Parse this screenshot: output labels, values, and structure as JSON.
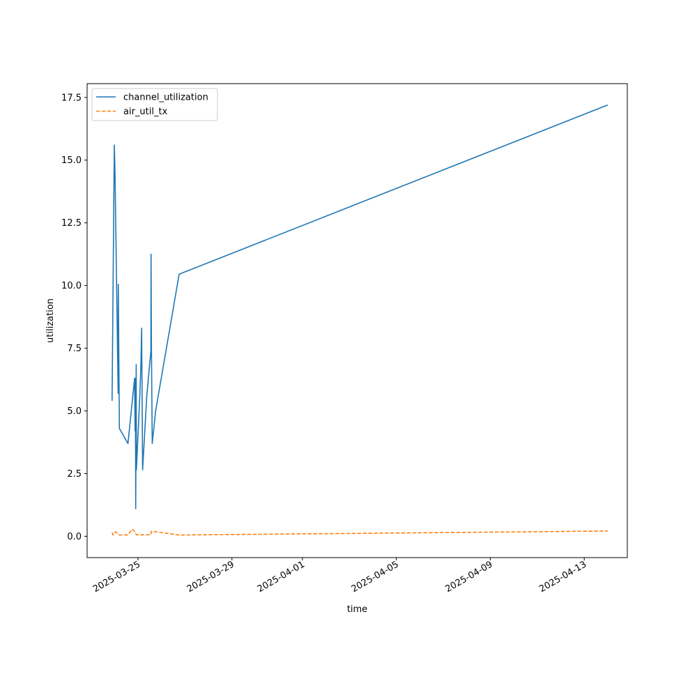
{
  "chart_data": {
    "type": "line",
    "title": "",
    "xlabel": "time",
    "ylabel": "utilization",
    "x_type": "date",
    "xlim": [
      "2025-03-22T20:00",
      "2025-04-14T20:00"
    ],
    "ylim": [
      -0.85,
      18.05
    ],
    "x_ticks": [
      "2025-03-25",
      "2025-03-29",
      "2025-04-01",
      "2025-04-05",
      "2025-04-09",
      "2025-04-13"
    ],
    "y_ticks": [
      0.0,
      2.5,
      5.0,
      7.5,
      10.0,
      12.5,
      15.0,
      17.5
    ],
    "y_tick_labels": [
      "0.0",
      "2.5",
      "5.0",
      "7.5",
      "10.0",
      "12.5",
      "15.0",
      "17.5"
    ],
    "grid": false,
    "legend_position": "top-left",
    "series": [
      {
        "name": "channel_utilization",
        "color": "#1f77b4",
        "style": "solid",
        "points": [
          [
            "2025-03-23T21:30",
            5.4
          ],
          [
            "2025-03-23T23:45",
            15.6
          ],
          [
            "2025-03-24T00:30",
            14.5
          ],
          [
            "2025-03-24T03:40",
            5.7
          ],
          [
            "2025-03-24T03:50",
            10.05
          ],
          [
            "2025-03-24T05:00",
            4.3
          ],
          [
            "2025-03-24T13:45",
            3.7
          ],
          [
            "2025-03-24T20:30",
            6.3
          ],
          [
            "2025-03-24T21:00",
            4.2
          ],
          [
            "2025-03-24T21:20",
            6.3
          ],
          [
            "2025-03-24T21:40",
            1.1
          ],
          [
            "2025-03-24T22:10",
            6.85
          ],
          [
            "2025-03-24T22:20",
            2.65
          ],
          [
            "2025-03-25T01:50",
            5.6
          ],
          [
            "2025-03-25T03:00",
            6.9
          ],
          [
            "2025-03-25T03:40",
            8.3
          ],
          [
            "2025-03-25T04:40",
            2.65
          ],
          [
            "2025-03-25T09:00",
            5.6
          ],
          [
            "2025-03-25T13:10",
            7.4
          ],
          [
            "2025-03-25T13:20",
            11.25
          ],
          [
            "2025-03-25T13:40",
            7.85
          ],
          [
            "2025-03-25T14:30",
            3.7
          ],
          [
            "2025-03-25T18:00",
            5.0
          ],
          [
            "2025-03-26T18:00",
            10.45
          ],
          [
            "2025-04-14T00:00",
            17.2
          ]
        ]
      },
      {
        "name": "air_util_tx",
        "color": "#ff7f0e",
        "style": "dashed",
        "points": [
          [
            "2025-03-23T21:30",
            0.15
          ],
          [
            "2025-03-23T22:30",
            0.05
          ],
          [
            "2025-03-23T23:45",
            0.13
          ],
          [
            "2025-03-24T01:00",
            0.18
          ],
          [
            "2025-03-24T03:40",
            0.1
          ],
          [
            "2025-03-24T05:00",
            0.05
          ],
          [
            "2025-03-24T13:45",
            0.06
          ],
          [
            "2025-03-24T18:00",
            0.28
          ],
          [
            "2025-03-24T20:00",
            0.22
          ],
          [
            "2025-03-24T22:20",
            0.06
          ],
          [
            "2025-03-25T03:40",
            0.06
          ],
          [
            "2025-03-25T13:10",
            0.06
          ],
          [
            "2025-03-25T13:40",
            0.2
          ],
          [
            "2025-03-25T18:00",
            0.18
          ],
          [
            "2025-03-26T18:00",
            0.05
          ],
          [
            "2025-04-14T00:00",
            0.21
          ]
        ]
      }
    ]
  }
}
